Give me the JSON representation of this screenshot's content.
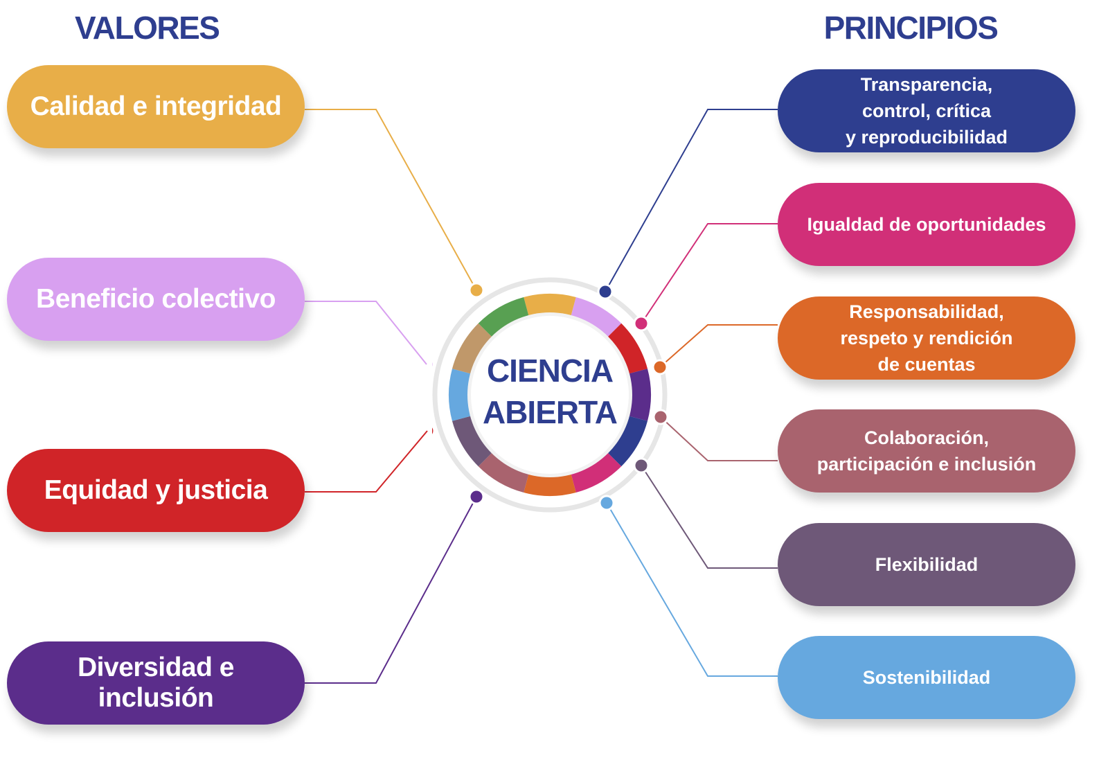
{
  "headings": {
    "valores": "VALORES",
    "principios": "PRINCIPIOS"
  },
  "center": {
    "label": "CIENCIA\nABIERTA"
  },
  "colors": {
    "heading": "#2E3E8F",
    "center_text": "#2E3E8F",
    "ring": "#E6E6E6",
    "hub_bg": "#ffffff",
    "hub_inner": "#F2F2F2"
  },
  "valores": [
    {
      "label": "Calidad e integridad",
      "color": "#E8AE48"
    },
    {
      "label": "Beneficio colectivo",
      "color": "#D8A0F0"
    },
    {
      "label": "Equidad y justicia",
      "color": "#D02428"
    },
    {
      "label": "Diversidad e inclusión",
      "color": "#5B2D8B"
    }
  ],
  "principios": [
    {
      "label": "Transparencia,\ncontrol, crítica\ny reproducibilidad",
      "color": "#2E3E8F"
    },
    {
      "label": "Igualdad de oportunidades",
      "color": "#D12F78"
    },
    {
      "label": "Responsabilidad,\nrespeto y rendición\nde cuentas",
      "color": "#DC6828"
    },
    {
      "label": "Colaboración,\nparticipación e inclusión",
      "color": "#A9636E"
    },
    {
      "label": "Flexibilidad",
      "color": "#6E5878"
    },
    {
      "label": "Sostenibilidad",
      "color": "#66A8DF"
    }
  ],
  "ring_segments": [
    {
      "name": "yellow",
      "color": "#E8AE48"
    },
    {
      "name": "lilac",
      "color": "#D8A0F0"
    },
    {
      "name": "red",
      "color": "#D02428"
    },
    {
      "name": "purple",
      "color": "#5B2D8B"
    },
    {
      "name": "navy",
      "color": "#2E3E8F"
    },
    {
      "name": "magenta",
      "color": "#D12F78"
    },
    {
      "name": "orange",
      "color": "#DC6828"
    },
    {
      "name": "rose",
      "color": "#A9636E"
    },
    {
      "name": "slate-purple",
      "color": "#6E5878"
    },
    {
      "name": "light-blue",
      "color": "#66A8DF"
    },
    {
      "name": "tan",
      "color": "#C0986A"
    },
    {
      "name": "green",
      "color": "#58A052"
    }
  ]
}
